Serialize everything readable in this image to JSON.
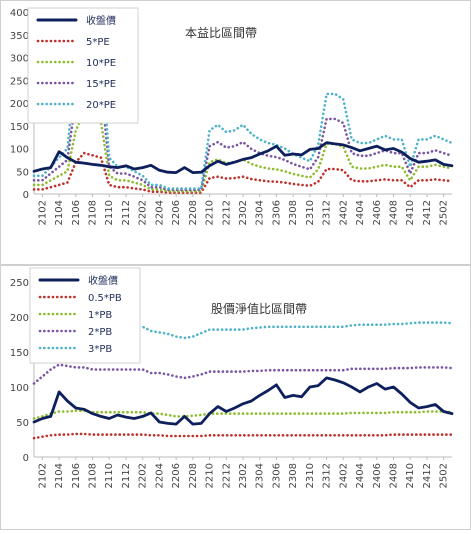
{
  "chart_data": [
    {
      "type": "line",
      "title": "本益比區間帶",
      "ylim": [
        0,
        400
      ],
      "yticks": [
        0,
        50,
        100,
        150,
        200,
        250,
        300,
        350,
        400
      ],
      "grid": false,
      "legend": "top-left",
      "x": [
        "2101",
        "2102",
        "2103",
        "2104",
        "2105",
        "2106",
        "2107",
        "2108",
        "2109",
        "2110",
        "2111",
        "2112",
        "2201",
        "2202",
        "2203",
        "2204",
        "2205",
        "2206",
        "2207",
        "2208",
        "2209",
        "2210",
        "2211",
        "2212",
        "2301",
        "2302",
        "2303",
        "2304",
        "2305",
        "2306",
        "2307",
        "2308",
        "2309",
        "2310",
        "2311",
        "2312",
        "2401",
        "2402",
        "2403",
        "2404",
        "2405",
        "2406",
        "2407",
        "2408",
        "2409",
        "2410",
        "2411",
        "2412",
        "2501",
        "2502",
        "2503"
      ],
      "xticklabels": [
        "2102",
        "2104",
        "2106",
        "2108",
        "2110",
        "2112",
        "2202",
        "2204",
        "2206",
        "2208",
        "2210",
        "2212",
        "2302",
        "2304",
        "2306",
        "2308",
        "2310",
        "2312",
        "2402",
        "2404",
        "2406",
        "2408",
        "2410",
        "2412",
        "2502"
      ],
      "series": [
        {
          "name": "收盤價",
          "color": "#0d1f5c",
          "style": "solid",
          "values": [
            50,
            55,
            58,
            93,
            80,
            70,
            68,
            65,
            63,
            60,
            58,
            62,
            55,
            58,
            63,
            52,
            48,
            47,
            58,
            47,
            48,
            62,
            72,
            65,
            70,
            76,
            80,
            88,
            95,
            105,
            85,
            88,
            86,
            98,
            100,
            113,
            110,
            108,
            102,
            95,
            100,
            105,
            97,
            100,
            92,
            78,
            70,
            72,
            75,
            65,
            62
          ]
        },
        {
          "name": "5*PE",
          "color": "#c0302a",
          "style": "dotted",
          "values": [
            10,
            10,
            15,
            20,
            25,
            70,
            90,
            85,
            80,
            20,
            15,
            15,
            12,
            10,
            5,
            5,
            3,
            3,
            3,
            3,
            3,
            35,
            38,
            34,
            35,
            38,
            33,
            30,
            28,
            27,
            25,
            22,
            20,
            18,
            27,
            55,
            55,
            52,
            30,
            28,
            28,
            30,
            32,
            30,
            30,
            15,
            30,
            30,
            32,
            30,
            28
          ]
        },
        {
          "name": "10*PE",
          "color": "#8fbc2f",
          "style": "dotted",
          "values": [
            20,
            20,
            30,
            40,
            50,
            140,
            180,
            170,
            160,
            40,
            30,
            30,
            25,
            20,
            10,
            10,
            6,
            6,
            6,
            6,
            6,
            70,
            76,
            68,
            70,
            76,
            66,
            60,
            56,
            54,
            50,
            44,
            40,
            36,
            54,
            110,
            110,
            104,
            60,
            56,
            56,
            60,
            64,
            60,
            60,
            30,
            60,
            60,
            64,
            60,
            56
          ]
        },
        {
          "name": "15*PE",
          "color": "#7a55a3",
          "style": "dotted",
          "values": [
            30,
            30,
            45,
            60,
            75,
            210,
            270,
            255,
            240,
            60,
            45,
            45,
            38,
            30,
            15,
            15,
            9,
            9,
            9,
            9,
            9,
            105,
            114,
            102,
            105,
            114,
            99,
            90,
            84,
            81,
            75,
            66,
            60,
            54,
            81,
            165,
            165,
            156,
            90,
            84,
            84,
            90,
            96,
            90,
            90,
            45,
            90,
            90,
            96,
            90,
            84
          ]
        },
        {
          "name": "20*PE",
          "color": "#4fb3c8",
          "style": "dotted",
          "values": [
            40,
            40,
            60,
            80,
            100,
            280,
            360,
            340,
            320,
            80,
            60,
            60,
            50,
            40,
            20,
            20,
            12,
            12,
            12,
            12,
            12,
            140,
            152,
            136,
            140,
            152,
            132,
            120,
            112,
            108,
            100,
            88,
            80,
            72,
            108,
            220,
            220,
            208,
            120,
            112,
            112,
            120,
            128,
            120,
            120,
            60,
            120,
            120,
            128,
            120,
            112
          ]
        }
      ]
    },
    {
      "type": "line",
      "title": "股價淨值比區間帶",
      "ylim": [
        0,
        250
      ],
      "yticks": [
        0,
        50,
        100,
        150,
        200,
        250
      ],
      "grid": false,
      "legend": "top-left",
      "x": [
        "2101",
        "2102",
        "2103",
        "2104",
        "2105",
        "2106",
        "2107",
        "2108",
        "2109",
        "2110",
        "2111",
        "2112",
        "2201",
        "2202",
        "2203",
        "2204",
        "2205",
        "2206",
        "2207",
        "2208",
        "2209",
        "2210",
        "2211",
        "2212",
        "2301",
        "2302",
        "2303",
        "2304",
        "2305",
        "2306",
        "2307",
        "2308",
        "2309",
        "2310",
        "2311",
        "2312",
        "2401",
        "2402",
        "2403",
        "2404",
        "2405",
        "2406",
        "2407",
        "2408",
        "2409",
        "2410",
        "2411",
        "2412",
        "2501",
        "2502",
        "2503"
      ],
      "xticklabels": [
        "2102",
        "2104",
        "2106",
        "2108",
        "2110",
        "2112",
        "2202",
        "2204",
        "2206",
        "2208",
        "2210",
        "2212",
        "2302",
        "2304",
        "2306",
        "2308",
        "2310",
        "2312",
        "2402",
        "2404",
        "2406",
        "2408",
        "2410",
        "2412",
        "2502"
      ],
      "series": [
        {
          "name": "收盤價",
          "color": "#0d1f5c",
          "style": "solid",
          "values": [
            50,
            55,
            58,
            93,
            80,
            70,
            68,
            62,
            58,
            55,
            60,
            57,
            55,
            58,
            63,
            50,
            48,
            47,
            58,
            47,
            48,
            62,
            72,
            65,
            70,
            76,
            80,
            88,
            95,
            103,
            85,
            88,
            86,
            100,
            102,
            113,
            110,
            106,
            100,
            93,
            100,
            105,
            97,
            100,
            90,
            78,
            70,
            72,
            75,
            65,
            62
          ]
        },
        {
          "name": "0.5*PB",
          "color": "#c0302a",
          "style": "dotted",
          "values": [
            27,
            29,
            31,
            32,
            32,
            33,
            33,
            32,
            32,
            32,
            32,
            32,
            32,
            32,
            31,
            31,
            30,
            30,
            30,
            30,
            30,
            31,
            31,
            31,
            31,
            31,
            31,
            31,
            31,
            31,
            31,
            31,
            31,
            31,
            31,
            31,
            31,
            31,
            31,
            31,
            31,
            31,
            31,
            32,
            32,
            32,
            32,
            32,
            32,
            32,
            32
          ]
        },
        {
          "name": "1*PB",
          "color": "#8fbc2f",
          "style": "dotted",
          "values": [
            55,
            58,
            62,
            65,
            65,
            66,
            66,
            64,
            64,
            64,
            64,
            64,
            64,
            64,
            62,
            62,
            60,
            58,
            58,
            59,
            60,
            62,
            62,
            62,
            62,
            62,
            62,
            62,
            62,
            62,
            62,
            62,
            62,
            62,
            62,
            62,
            62,
            62,
            63,
            63,
            63,
            63,
            63,
            64,
            64,
            64,
            64,
            65,
            65,
            65,
            64
          ]
        },
        {
          "name": "2*PB",
          "color": "#7a55a3",
          "style": "dotted",
          "values": [
            105,
            115,
            125,
            132,
            130,
            128,
            128,
            125,
            125,
            125,
            125,
            125,
            125,
            125,
            120,
            120,
            118,
            115,
            113,
            115,
            118,
            122,
            122,
            122,
            122,
            122,
            123,
            123,
            124,
            124,
            124,
            124,
            124,
            124,
            124,
            124,
            124,
            124,
            126,
            126,
            126,
            126,
            126,
            127,
            127,
            127,
            128,
            128,
            128,
            128,
            127
          ]
        },
        {
          "name": "3*PB",
          "color": "#4fb3c8",
          "style": "dotted",
          "values": [
            160,
            172,
            185,
            195,
            195,
            193,
            192,
            188,
            188,
            188,
            188,
            188,
            186,
            186,
            180,
            178,
            176,
            172,
            170,
            172,
            177,
            182,
            182,
            182,
            182,
            182,
            184,
            185,
            186,
            186,
            186,
            186,
            186,
            186,
            186,
            186,
            186,
            186,
            188,
            189,
            189,
            189,
            189,
            190,
            190,
            191,
            192,
            192,
            192,
            192,
            191
          ]
        }
      ]
    }
  ]
}
